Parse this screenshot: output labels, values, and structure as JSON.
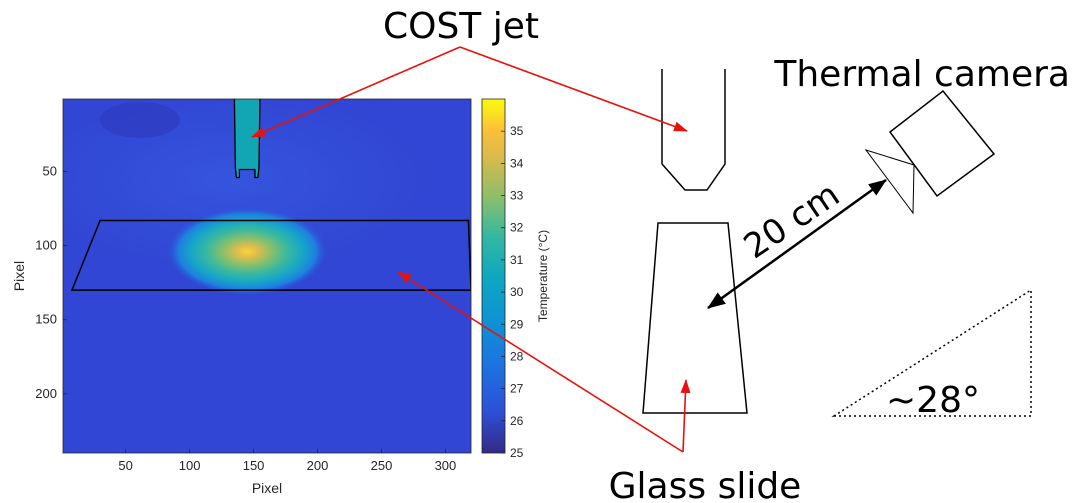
{
  "labels": {
    "cost_jet": "COST jet",
    "thermal_camera": "Thermal camera",
    "glass_slide": "Glass slide",
    "distance": "20 cm",
    "angle": "~28°"
  },
  "chart_data": {
    "type": "heatmap",
    "xlabel": "Pixel",
    "ylabel": "Pixel",
    "colorbar_label": "Temperature (°C)",
    "xlim": [
      1,
      320
    ],
    "ylim": [
      1,
      240
    ],
    "y_reversed": true,
    "x_ticks": [
      50,
      100,
      150,
      200,
      250,
      300
    ],
    "y_ticks": [
      50,
      100,
      150,
      200
    ],
    "colorbar_range": [
      25,
      36
    ],
    "colorbar_ticks": [
      25,
      26,
      27,
      28,
      29,
      30,
      31,
      32,
      33,
      34,
      35
    ],
    "colormap": "parula",
    "background_temperature": 25.9,
    "hot_spot": {
      "x": 145,
      "y": 104,
      "peak_temperature": 34.5
    },
    "jet_nozzle": {
      "x_range": [
        135,
        155
      ],
      "y_range": [
        1,
        54
      ],
      "temperature": 30.2
    },
    "slide_outline": [
      [
        30,
        83
      ],
      [
        318,
        83
      ],
      [
        320,
        130
      ],
      [
        8,
        130
      ]
    ]
  },
  "colors": {
    "arrow_red": "#e8120c",
    "outline": "#000000"
  }
}
